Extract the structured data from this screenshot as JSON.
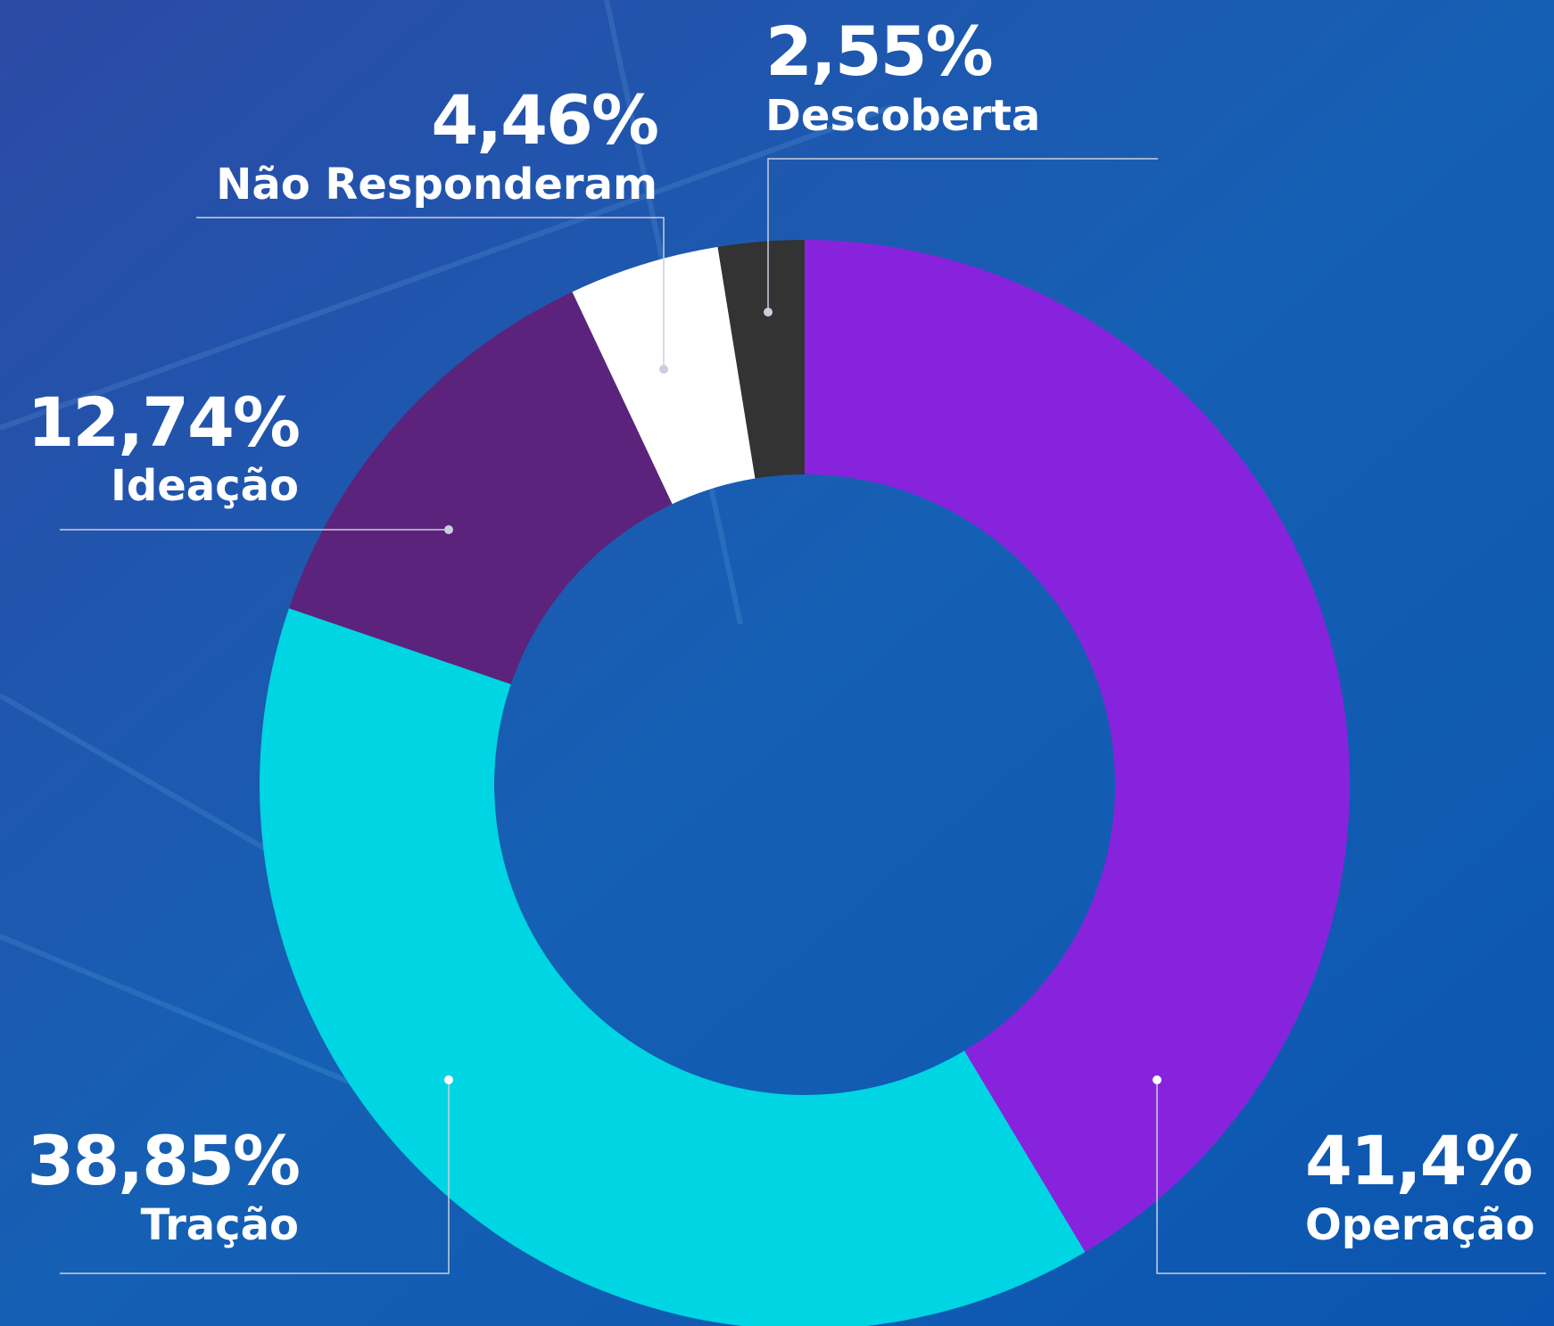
{
  "chart_data": {
    "type": "donut",
    "categories": [
      "Operação",
      "Tração",
      "Ideação",
      "Não Responderam",
      "Descoberta"
    ],
    "values": [
      41.4,
      38.85,
      12.74,
      4.46,
      2.55
    ],
    "value_labels": [
      "41,4%",
      "38,85%",
      "12,74%",
      "4,46%",
      "2,55%"
    ],
    "colors": [
      "#8823dd",
      "#00d5e3",
      "#5b237b",
      "#ffffff",
      "#333333"
    ]
  }
}
